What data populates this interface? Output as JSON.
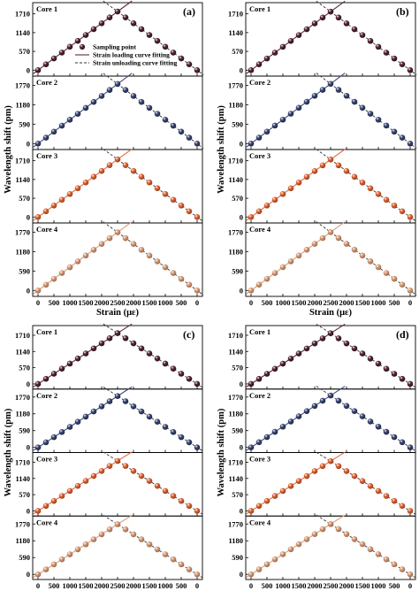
{
  "chart_data": {
    "type": "scatter",
    "x_tick_labels": [
      "0",
      "500",
      "1000",
      "1500",
      "2000",
      "2500",
      "2000",
      "1500",
      "1000",
      "500",
      "0"
    ],
    "x_axis_title": "Strain (με)",
    "y_axis_title": "Wavelength shift (pm)",
    "legend": {
      "placement": "bottom-right of top subplot in panel (a)",
      "entries": [
        {
          "label": "Sampling point",
          "style": "marker"
        },
        {
          "label": "Strain loading curve fitting",
          "style": "solid-line"
        },
        {
          "label": "Strain unloading curve fitting",
          "style": "dashed-line"
        }
      ]
    },
    "cores": [
      {
        "name": "Core 1",
        "color": "#5a2a3a",
        "y_ticks": [
          0,
          570,
          1140,
          1710
        ],
        "ylim": [
          -180,
          2050
        ]
      },
      {
        "name": "Core 2",
        "color": "#3e4c7a",
        "y_ticks": [
          0,
          590,
          1180,
          1770
        ],
        "ylim": [
          -180,
          2050
        ]
      },
      {
        "name": "Core 3",
        "color": "#e06a3c",
        "y_ticks": [
          0,
          570,
          1140,
          1710
        ],
        "ylim": [
          -180,
          2050
        ]
      },
      {
        "name": "Core 4",
        "color": "#d9a07c",
        "y_ticks": [
          0,
          590,
          1180,
          1770
        ],
        "ylim": [
          -180,
          2050
        ]
      }
    ],
    "strain_path": [
      0,
      250,
      500,
      750,
      1000,
      1250,
      1500,
      1750,
      2000,
      2250,
      2500,
      2250,
      2000,
      1750,
      1500,
      1250,
      1000,
      750,
      500,
      250,
      0
    ],
    "panels": [
      {
        "letter": "(a)",
        "show_legend": true,
        "series": [
          {
            "core": "Core 1",
            "values": [
              0,
              178,
              355,
              535,
              712,
              890,
              1068,
              1245,
              1423,
              1602,
              1780,
              1602,
              1423,
              1245,
              1068,
              890,
              712,
              535,
              355,
              178,
              0
            ]
          },
          {
            "core": "Core 2",
            "values": [
              0,
              180,
              362,
              545,
              725,
              905,
              1085,
              1265,
              1448,
              1628,
              1810,
              1628,
              1448,
              1265,
              1085,
              905,
              725,
              545,
              362,
              180,
              0
            ]
          },
          {
            "core": "Core 3",
            "values": [
              0,
              175,
              350,
              525,
              700,
              875,
              1050,
              1225,
              1400,
              1575,
              1750,
              1575,
              1400,
              1225,
              1050,
              875,
              700,
              525,
              350,
              175,
              0
            ]
          },
          {
            "core": "Core 4",
            "values": [
              0,
              176,
              353,
              530,
              706,
              883,
              1060,
              1236,
              1413,
              1590,
              1766,
              1590,
              1413,
              1236,
              1060,
              883,
              706,
              530,
              353,
              176,
              0
            ]
          }
        ]
      },
      {
        "letter": "(b)",
        "show_legend": false,
        "series": [
          {
            "core": "Core 1",
            "values": [
              0,
              177,
              354,
              532,
              710,
              888,
              1066,
              1243,
              1420,
              1598,
              1776,
              1598,
              1420,
              1243,
              1066,
              888,
              710,
              532,
              354,
              177,
              0
            ]
          },
          {
            "core": "Core 2",
            "values": [
              0,
              181,
              363,
              546,
              727,
              908,
              1089,
              1270,
              1452,
              1633,
              1815,
              1633,
              1452,
              1270,
              1089,
              908,
              727,
              546,
              363,
              181,
              0
            ]
          },
          {
            "core": "Core 3",
            "values": [
              0,
              174,
              349,
              523,
              698,
              872,
              1047,
              1221,
              1396,
              1570,
              1745,
              1570,
              1396,
              1221,
              1047,
              872,
              698,
              523,
              349,
              174,
              0
            ]
          },
          {
            "core": "Core 4",
            "values": [
              0,
              177,
              354,
              531,
              708,
              885,
              1062,
              1239,
              1416,
              1593,
              1770,
              1593,
              1416,
              1239,
              1062,
              885,
              708,
              531,
              354,
              177,
              0
            ]
          }
        ]
      },
      {
        "letter": "(c)",
        "show_legend": false,
        "series": [
          {
            "core": "Core 1",
            "values": [
              0,
              179,
              357,
              536,
              714,
              893,
              1071,
              1250,
              1428,
              1607,
              1785,
              1607,
              1428,
              1250,
              1071,
              893,
              714,
              536,
              357,
              179,
              0
            ]
          },
          {
            "core": "Core 2",
            "values": [
              0,
              180,
              360,
              541,
              721,
              901,
              1082,
              1262,
              1442,
              1623,
              1803,
              1623,
              1442,
              1262,
              1082,
              901,
              721,
              541,
              360,
              180,
              0
            ]
          },
          {
            "core": "Core 3",
            "values": [
              0,
              176,
              351,
              527,
              702,
              878,
              1053,
              1229,
              1404,
              1580,
              1755,
              1580,
              1404,
              1229,
              1053,
              878,
              702,
              527,
              351,
              176,
              0
            ]
          },
          {
            "core": "Core 4",
            "values": [
              0,
              176,
              352,
              528,
              704,
              880,
              1056,
              1232,
              1408,
              1584,
              1760,
              1584,
              1408,
              1232,
              1056,
              880,
              704,
              528,
              352,
              176,
              0
            ]
          }
        ]
      },
      {
        "letter": "(d)",
        "show_legend": false,
        "series": [
          {
            "core": "Core 1",
            "values": [
              0,
              178,
              356,
              534,
              712,
              890,
              1068,
              1246,
              1424,
              1602,
              1780,
              1602,
              1424,
              1246,
              1068,
              890,
              712,
              534,
              356,
              178,
              0
            ]
          },
          {
            "core": "Core 2",
            "values": [
              0,
              182,
              364,
              547,
              729,
              911,
              1093,
              1275,
              1458,
              1640,
              1822,
              1640,
              1458,
              1275,
              1093,
              911,
              729,
              547,
              364,
              182,
              0
            ]
          },
          {
            "core": "Core 3",
            "values": [
              0,
              175,
              350,
              524,
              699,
              874,
              1049,
              1224,
              1398,
              1573,
              1748,
              1573,
              1398,
              1224,
              1049,
              874,
              699,
              524,
              350,
              175,
              0
            ]
          },
          {
            "core": "Core 4",
            "values": [
              0,
              177,
              353,
              530,
              707,
              884,
              1060,
              1237,
              1414,
              1590,
              1767,
              1590,
              1414,
              1237,
              1060,
              884,
              707,
              530,
              353,
              177,
              0
            ]
          }
        ]
      }
    ]
  }
}
